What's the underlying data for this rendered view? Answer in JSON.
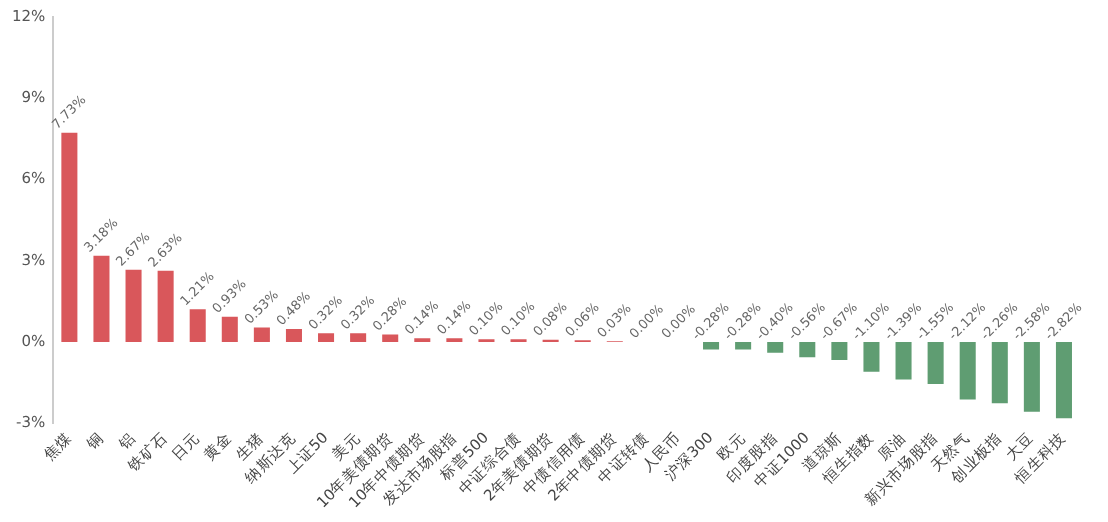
{
  "chart_data": {
    "type": "bar",
    "categories": [
      "焦煤",
      "铜",
      "铝",
      "铁矿石",
      "日元",
      "黄金",
      "生猪",
      "纳斯达克",
      "上证50",
      "美元",
      "10年美债期货",
      "10年中债期货",
      "发达市场股指",
      "标普500",
      "中证综合债",
      "2年美债期货",
      "中债信用债",
      "2年中债期货",
      "中证转债",
      "人民币",
      "沪深300",
      "欧元",
      "印度股指",
      "中证1000",
      "道琼斯",
      "恒生指数",
      "原油",
      "新兴市场股指",
      "天然气",
      "创业板指",
      "大豆",
      "恒生科技"
    ],
    "values": [
      7.73,
      3.18,
      2.67,
      2.63,
      1.21,
      0.93,
      0.53,
      0.48,
      0.32,
      0.32,
      0.28,
      0.14,
      0.14,
      0.1,
      0.1,
      0.08,
      0.06,
      0.03,
      0.0,
      0.0,
      -0.28,
      -0.28,
      -0.4,
      -0.56,
      -0.67,
      -1.1,
      -1.39,
      -1.55,
      -2.12,
      -2.26,
      -2.58,
      -2.82
    ],
    "colors": [
      "#d9575b",
      "#d9575b",
      "#d9575b",
      "#d9575b",
      "#d9575b",
      "#d9575b",
      "#d9575b",
      "#d9575b",
      "#d9575b",
      "#d9575b",
      "#d9575b",
      "#d9575b",
      "#d9575b",
      "#d9575b",
      "#d9575b",
      "#d9575b",
      "#d9575b",
      "#d9575b",
      "#d9575b",
      "#d9575b",
      "#5f9d72",
      "#5f9d72",
      "#5f9d72",
      "#5f9d72",
      "#5f9d72",
      "#5f9d72",
      "#5f9d72",
      "#5f9d72",
      "#5f9d72",
      "#5f9d72",
      "#5f9d72",
      "#5f9d72"
    ],
    "value_labels": [
      "7.73%",
      "3.18%",
      "2.67%",
      "2.63%",
      "1.21%",
      "0.93%",
      "0.53%",
      "0.48%",
      "0.32%",
      "0.32%",
      "0.28%",
      "0.14%",
      "0.14%",
      "0.10%",
      "0.10%",
      "0.08%",
      "0.06%",
      "0.03%",
      "0.00%",
      "0.00%",
      "-0.28%",
      "-0.28%",
      "-0.40%",
      "-0.56%",
      "-0.67%",
      "-1.10%",
      "-1.39%",
      "-1.55%",
      "-2.12%",
      "-2.26%",
      "-2.58%",
      "-2.82%"
    ],
    "ylim": [
      -3,
      12
    ],
    "yticks": [
      {
        "value": -3,
        "label": "-3%"
      },
      {
        "value": 0,
        "label": "0%"
      },
      {
        "value": 3,
        "label": "3%"
      },
      {
        "value": 6,
        "label": "6%"
      },
      {
        "value": 9,
        "label": "9%"
      },
      {
        "value": 12,
        "label": "12%"
      }
    ],
    "grid": false,
    "legend": false
  }
}
